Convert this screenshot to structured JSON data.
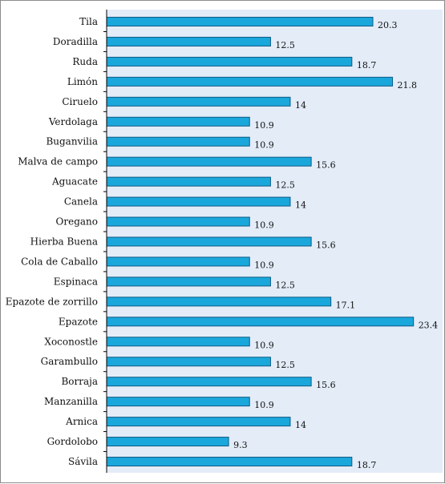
{
  "chart_data": {
    "type": "bar",
    "orientation": "horizontal",
    "categories": [
      "Tila",
      "Doradilla",
      "Ruda",
      "Limón",
      "Ciruelo",
      "Verdolaga",
      "Buganvilia",
      "Malva de campo",
      "Aguacate",
      "Canela",
      "Oregano",
      "Hierba Buena",
      "Cola de Caballo",
      "Espinaca",
      "Epazote de zorrillo",
      "Epazote",
      "Xoconostle",
      "Garambullo",
      "Borraja",
      "Manzanilla",
      "Arnica",
      "Gordolobo",
      "Sávila"
    ],
    "values": [
      20.3,
      12.5,
      18.7,
      21.8,
      14,
      10.9,
      10.9,
      15.6,
      12.5,
      14,
      10.9,
      15.6,
      10.9,
      12.5,
      17.1,
      23.4,
      10.9,
      12.5,
      15.6,
      10.9,
      14,
      9.3,
      18.7
    ],
    "value_labels": [
      "20.3",
      "12.5",
      "18.7",
      "21.8",
      "14",
      "10.9",
      "10.9",
      "15.6",
      "12.5",
      "14",
      "10.9",
      "15.6",
      "10.9",
      "12.5",
      "17.1",
      "23.4",
      "10.9",
      "12.5",
      "15.6",
      "10.9",
      "14",
      "9.3",
      "18.7"
    ],
    "xlim": [
      0,
      25
    ],
    "grid": false,
    "legend": "none",
    "colors": {
      "bar_fill": "#1aa7dc",
      "bar_stroke": "#0d5c86",
      "plot_bg": "#e3ecf7",
      "axis": "#000000"
    }
  }
}
